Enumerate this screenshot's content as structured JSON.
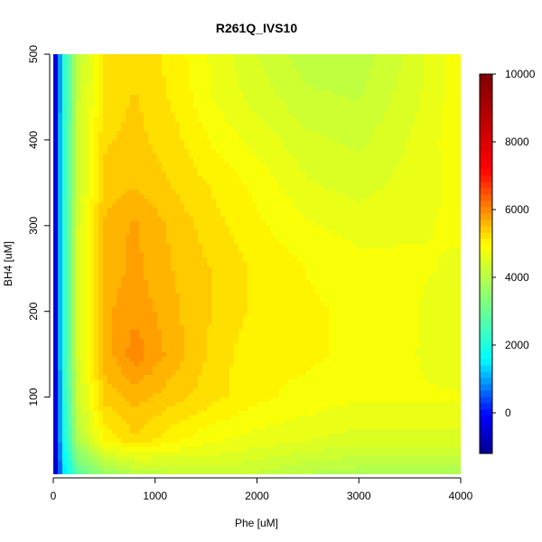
{
  "chart_data": {
    "type": "heatmap",
    "subtype": "filled-contour",
    "title": "R261Q_IVS10",
    "xlabel": "Phe [uM]",
    "ylabel": "BH4 [uM]",
    "xlim": [
      0,
      4000
    ],
    "ylim": [
      10,
      500
    ],
    "xticks": [
      "0",
      "1000",
      "2000",
      "3000",
      "4000"
    ],
    "xtick_values": [
      0,
      1000,
      2000,
      3000,
      4000
    ],
    "yticks": [
      "100",
      "200",
      "300",
      "400",
      "500"
    ],
    "ytick_values": [
      100,
      200,
      300,
      400,
      500
    ],
    "colorbar": {
      "min": -1200,
      "max": 10000,
      "ticks": [
        "0",
        "2000",
        "4000",
        "6000",
        "8000",
        "10000"
      ],
      "tick_values": [
        0,
        2000,
        4000,
        6000,
        8000,
        10000
      ],
      "colormap": "blue-cyan-green-yellow-red-darkred"
    },
    "grid": false,
    "z_grid": {
      "x": [
        0,
        100,
        250,
        500,
        800,
        1200,
        1600,
        2000,
        2500,
        3000,
        3500,
        4000
      ],
      "y": [
        10,
        50,
        100,
        150,
        200,
        250,
        300,
        350,
        400,
        450,
        500
      ],
      "values": [
        [
          -1100,
          1400,
          2800,
          3600,
          4000,
          4200,
          4300,
          4200,
          4000,
          3900,
          3900,
          3900
        ],
        [
          -1000,
          1800,
          4000,
          5000,
          5300,
          5000,
          4800,
          4700,
          4600,
          4500,
          4500,
          4500
        ],
        [
          -1000,
          2000,
          4400,
          5400,
          5600,
          5400,
          5200,
          5000,
          4900,
          4800,
          4800,
          4800
        ],
        [
          -1000,
          2100,
          4500,
          5600,
          6000,
          5600,
          5250,
          5000,
          5000,
          4900,
          4800,
          4600
        ],
        [
          -1000,
          2100,
          4500,
          5650,
          5850,
          5550,
          5300,
          5100,
          5000,
          4900,
          4800,
          4650
        ],
        [
          -1000,
          2100,
          4500,
          5600,
          5750,
          5500,
          5300,
          5100,
          4950,
          4850,
          4800,
          4750
        ],
        [
          -1000,
          2100,
          4500,
          5550,
          5750,
          5450,
          5200,
          5000,
          4800,
          4700,
          4750,
          4800
        ],
        [
          -1000,
          2100,
          4400,
          5400,
          5500,
          5300,
          5100,
          4900,
          4600,
          4500,
          4650,
          4850
        ],
        [
          -1000,
          2100,
          4350,
          5300,
          5400,
          5200,
          4900,
          4700,
          4450,
          4350,
          4600,
          4900
        ],
        [
          -1000,
          2050,
          4300,
          5200,
          5350,
          5100,
          4750,
          4500,
          4250,
          4200,
          4500,
          4900
        ],
        [
          -1000,
          2000,
          4250,
          5150,
          5300,
          5050,
          4700,
          4400,
          4100,
          4100,
          4450,
          4900
        ]
      ]
    }
  }
}
